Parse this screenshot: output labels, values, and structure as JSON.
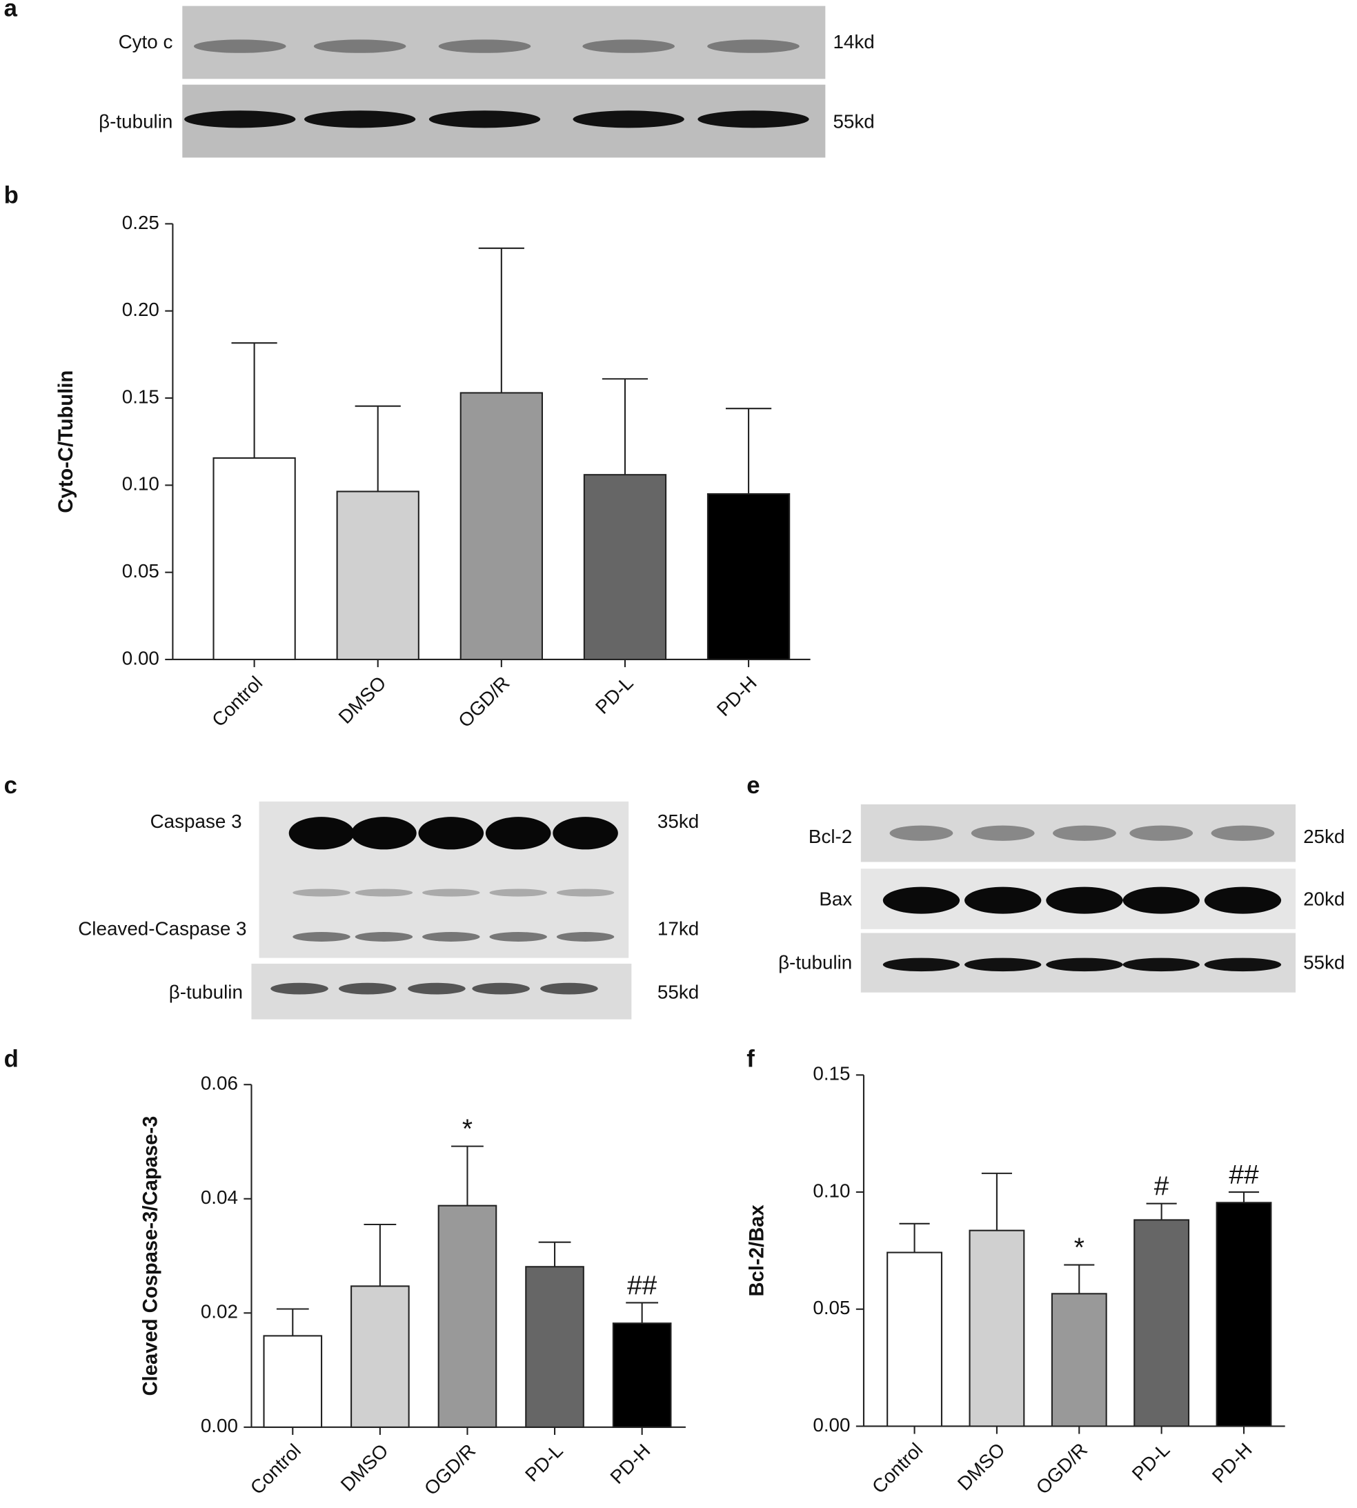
{
  "blots": [
    {
      "panel": "a",
      "rows": [
        {
          "label": "Cyto c",
          "size": "14kd"
        },
        {
          "label": "β-tubulin",
          "size": "55kd"
        }
      ]
    },
    {
      "panel": "c",
      "rows": [
        {
          "label": "Caspase 3",
          "size": "35kd"
        },
        {
          "label": "Cleaved-Caspase 3",
          "size": "17kd"
        },
        {
          "label": "β-tubulin",
          "size": "55kd"
        }
      ]
    },
    {
      "panel": "e",
      "rows": [
        {
          "label": "Bcl-2",
          "size": "25kd"
        },
        {
          "label": "Bax",
          "size": "20kd"
        },
        {
          "label": "β-tubulin",
          "size": "55kd"
        }
      ]
    }
  ],
  "chart_data": [
    {
      "type": "bar",
      "panel": "b",
      "ylabel": "Cyto-C/Tubulin",
      "categories": [
        "Control",
        "DMSO",
        "OGD/R",
        "PD-L",
        "PD-H"
      ],
      "values": [
        0.1156,
        0.0964,
        0.153,
        0.106,
        0.095
      ],
      "errors": [
        0.066,
        0.049,
        0.083,
        0.055,
        0.049
      ],
      "colors": [
        "#ffffff",
        "#d0d0d0",
        "#999999",
        "#666666",
        "#000000"
      ],
      "ylim": [
        0,
        0.25
      ],
      "yticks": [
        {
          "value": 0,
          "label": "0.00"
        },
        {
          "value": 0.05,
          "label": "0.05"
        },
        {
          "value": 0.1,
          "label": "0.10"
        },
        {
          "value": 0.15,
          "label": "0.15"
        },
        {
          "value": 0.2,
          "label": "0.20"
        },
        {
          "value": 0.25,
          "label": "0.25"
        }
      ]
    },
    {
      "type": "bar",
      "panel": "d",
      "ylabel": "Cleaved Cospase-3/Capase-3",
      "categories": [
        "Control",
        "DMSO",
        "OGD/R",
        "PD-L",
        "PD-H"
      ],
      "values": [
        0.016,
        0.0247,
        0.0388,
        0.0281,
        0.0182
      ],
      "errors": [
        0.0047,
        0.0108,
        0.0104,
        0.0043,
        0.0036
      ],
      "annotations": [
        null,
        null,
        "*",
        null,
        "##"
      ],
      "colors": [
        "#ffffff",
        "#d0d0d0",
        "#999999",
        "#666666",
        "#000000"
      ],
      "ylim": [
        0,
        0.06
      ],
      "yticks": [
        {
          "value": 0,
          "label": "0.00"
        },
        {
          "value": 0.02,
          "label": "0.02"
        },
        {
          "value": 0.04,
          "label": "0.04"
        },
        {
          "value": 0.06,
          "label": "0.06"
        }
      ]
    },
    {
      "type": "bar",
      "panel": "f",
      "ylabel": "Bcl-2/Bax",
      "categories": [
        "Control",
        "DMSO",
        "OGD/R",
        "PD-L",
        "PD-H"
      ],
      "values": [
        0.0742,
        0.0836,
        0.0566,
        0.0881,
        0.0955
      ],
      "errors": [
        0.0123,
        0.0244,
        0.0123,
        0.007,
        0.0045
      ],
      "annotations": [
        null,
        null,
        "*",
        "#",
        "##"
      ],
      "colors": [
        "#ffffff",
        "#d0d0d0",
        "#999999",
        "#666666",
        "#000000"
      ],
      "ylim": [
        0,
        0.15
      ],
      "yticks": [
        {
          "value": 0,
          "label": "0.00"
        },
        {
          "value": 0.05,
          "label": "0.05"
        },
        {
          "value": 0.1,
          "label": "0.10"
        },
        {
          "value": 0.15,
          "label": "0.15"
        }
      ]
    }
  ]
}
